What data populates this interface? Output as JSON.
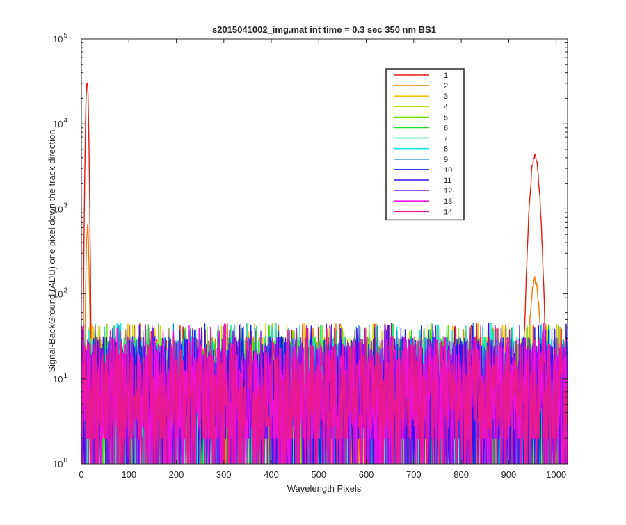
{
  "chart_data": {
    "type": "line",
    "title": "s2015041002_img.mat int time = 0.3 sec  350 nm BS1",
    "xlabel": "Wavelength Pixels",
    "ylabel": "Signal-BackGround (ADU) one pixel down the track direction",
    "xlim": [
      0,
      1024
    ],
    "ylim": [
      1,
      100000
    ],
    "yscale": "log",
    "grid": false,
    "legend_position": "top-right-inner",
    "x_ticks": [
      {
        "value": 0,
        "label": "0"
      },
      {
        "value": 100,
        "label": "100"
      },
      {
        "value": 200,
        "label": "200"
      },
      {
        "value": 300,
        "label": "300"
      },
      {
        "value": 400,
        "label": "400"
      },
      {
        "value": 500,
        "label": "500"
      },
      {
        "value": 600,
        "label": "600"
      },
      {
        "value": 700,
        "label": "700"
      },
      {
        "value": 800,
        "label": "800"
      },
      {
        "value": 900,
        "label": "900"
      },
      {
        "value": 1000,
        "label": "1000"
      }
    ],
    "y_ticks": [
      {
        "value": 1,
        "base": "10",
        "exp": "0"
      },
      {
        "value": 10,
        "base": "10",
        "exp": "1"
      },
      {
        "value": 100,
        "base": "10",
        "exp": "2"
      },
      {
        "value": 1000,
        "base": "10",
        "exp": "3"
      },
      {
        "value": 10000,
        "base": "10",
        "exp": "4"
      },
      {
        "value": 100000,
        "base": "10",
        "exp": "5"
      }
    ],
    "series": [
      {
        "name": "1",
        "color": "#e8190f",
        "peaks": [
          {
            "x": 12,
            "y": 30000
          },
          {
            "x": 955,
            "y": 4200
          }
        ]
      },
      {
        "name": "2",
        "color": "#f07a0a",
        "peaks": [
          {
            "x": 13,
            "y": 600
          },
          {
            "x": 955,
            "y": 145
          }
        ]
      },
      {
        "name": "3",
        "color": "#f5c400",
        "peaks": []
      },
      {
        "name": "4",
        "color": "#c8e000",
        "peaks": []
      },
      {
        "name": "5",
        "color": "#72e000",
        "peaks": []
      },
      {
        "name": "6",
        "color": "#18e028",
        "peaks": []
      },
      {
        "name": "7",
        "color": "#18e89a",
        "peaks": []
      },
      {
        "name": "8",
        "color": "#18e8e0",
        "peaks": []
      },
      {
        "name": "9",
        "color": "#1a8fd8",
        "peaks": []
      },
      {
        "name": "10",
        "color": "#0a30e0",
        "peaks": []
      },
      {
        "name": "11",
        "color": "#3a10f0",
        "peaks": []
      },
      {
        "name": "12",
        "color": "#9a10e8",
        "peaks": []
      },
      {
        "name": "13",
        "color": "#f010e0",
        "peaks": []
      },
      {
        "name": "14",
        "color": "#e81a90",
        "peaks": []
      }
    ],
    "noise_floor": {
      "min": 1,
      "max": 45
    }
  }
}
